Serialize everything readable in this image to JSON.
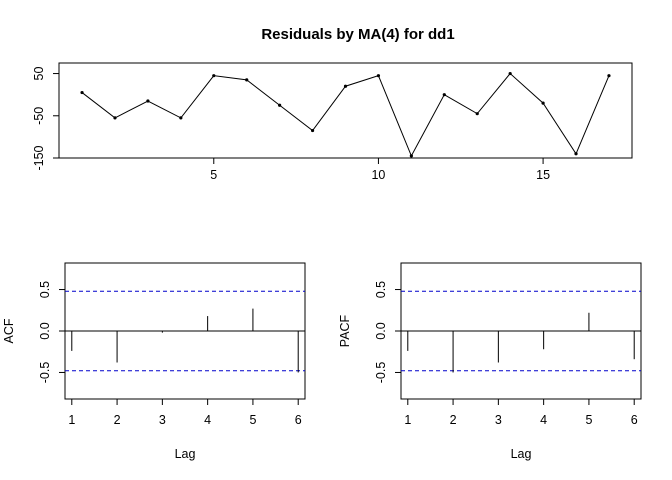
{
  "chart_data": [
    {
      "id": "residuals",
      "type": "line",
      "title": "Residuals by MA(4) for dd1",
      "xlabel": "",
      "ylabel": "",
      "xlim": [
        0.3,
        17.7
      ],
      "ylim": [
        -150,
        75
      ],
      "xticks": [
        5,
        10,
        15
      ],
      "yticks": [
        -150,
        -50,
        50
      ],
      "x": [
        1,
        2,
        3,
        4,
        5,
        6,
        7,
        8,
        9,
        10,
        11,
        12,
        13,
        14,
        15,
        16,
        17
      ],
      "values": [
        5,
        -55,
        -15,
        -55,
        45,
        35,
        -25,
        -85,
        20,
        45,
        -145,
        0,
        -45,
        50,
        -20,
        -140,
        45
      ],
      "marker": "small-dot",
      "color": "#000000"
    },
    {
      "id": "acf",
      "type": "bar",
      "title": "",
      "xlabel": "Lag",
      "ylabel": "ACF",
      "xlim": [
        0.85,
        6.15
      ],
      "ylim": [
        -0.82,
        0.82
      ],
      "xticks": [
        1,
        2,
        3,
        4,
        5,
        6
      ],
      "yticks": [
        -0.5,
        0.0,
        0.5
      ],
      "ytick_labels": [
        "-0.5",
        "0.0",
        "0.5"
      ],
      "lags": [
        1,
        2,
        3,
        4,
        5,
        6
      ],
      "values": [
        -0.24,
        -0.38,
        -0.02,
        0.18,
        0.27,
        -0.5
      ],
      "ci": 0.48,
      "ci_color": "#0000CC",
      "color": "#000000"
    },
    {
      "id": "pacf",
      "type": "bar",
      "title": "",
      "xlabel": "Lag",
      "ylabel": "PACF",
      "xlim": [
        0.85,
        6.15
      ],
      "ylim": [
        -0.82,
        0.82
      ],
      "xticks": [
        1,
        2,
        3,
        4,
        5,
        6
      ],
      "yticks": [
        -0.5,
        0.0,
        0.5
      ],
      "ytick_labels": [
        "-0.5",
        "0.0",
        "0.5"
      ],
      "lags": [
        1,
        2,
        3,
        4,
        5,
        6
      ],
      "values": [
        -0.24,
        -0.5,
        -0.38,
        -0.22,
        0.22,
        -0.34
      ],
      "ci": 0.48,
      "ci_color": "#0000CC",
      "color": "#000000"
    }
  ]
}
